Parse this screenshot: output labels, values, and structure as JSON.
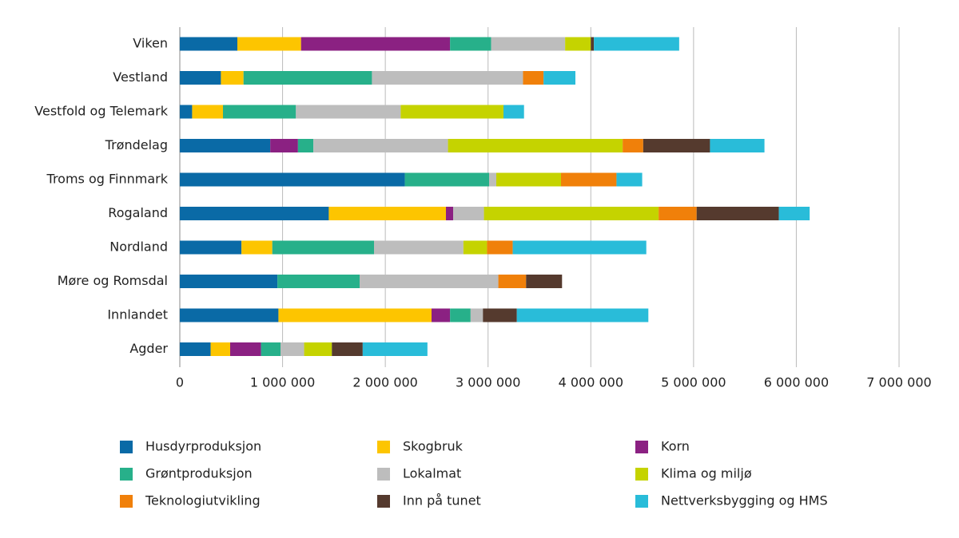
{
  "chart_data": {
    "type": "stacked-bar-horizontal",
    "categories": [
      "Viken",
      "Vestland",
      "Vestfold og Telemark",
      "Trøndelag",
      "Troms og Finnmark",
      "Rogaland",
      "Nordland",
      "Møre og Romsdal",
      "Innlandet",
      "Agder"
    ],
    "series": [
      {
        "name": "Husdyrproduksjon",
        "color": "#0a6aa6",
        "values": [
          560000,
          400000,
          120000,
          880000,
          2190000,
          1450000,
          600000,
          950000,
          960000,
          300000
        ]
      },
      {
        "name": "Skogbruk",
        "color": "#fdc500",
        "values": [
          620000,
          220000,
          300000,
          0,
          0,
          1140000,
          300000,
          0,
          1490000,
          190000
        ]
      },
      {
        "name": "Korn",
        "color": "#8b2182",
        "values": [
          1450000,
          0,
          0,
          270000,
          0,
          70000,
          0,
          0,
          180000,
          300000
        ]
      },
      {
        "name": "Grøntproduksjon",
        "color": "#27b08a",
        "values": [
          400000,
          1250000,
          710000,
          150000,
          820000,
          0,
          990000,
          800000,
          200000,
          190000
        ]
      },
      {
        "name": "Lokalmat",
        "color": "#bdbdbd",
        "values": [
          720000,
          1470000,
          1020000,
          1310000,
          70000,
          300000,
          870000,
          1350000,
          120000,
          230000
        ]
      },
      {
        "name": "Klima og miljø",
        "color": "#c5d300",
        "values": [
          250000,
          0,
          1000000,
          1700000,
          630000,
          1700000,
          230000,
          0,
          0,
          270000
        ]
      },
      {
        "name": "Teknologiutvikling",
        "color": "#f0800a",
        "values": [
          0,
          200000,
          0,
          200000,
          540000,
          370000,
          250000,
          270000,
          0,
          0
        ]
      },
      {
        "name": "Inn på tunet",
        "color": "#553a2e",
        "values": [
          30000,
          0,
          0,
          650000,
          0,
          800000,
          0,
          350000,
          330000,
          300000
        ]
      },
      {
        "name": "Nettverksbygging og HMS",
        "color": "#29bcd9",
        "values": [
          830000,
          310000,
          200000,
          530000,
          250000,
          300000,
          1300000,
          0,
          1280000,
          630000
        ]
      }
    ],
    "xlim": [
      0,
      7000000
    ],
    "xticks": [
      0,
      {
        "value": 1000000,
        "label": "1 000 000"
      },
      {
        "value": 2000000,
        "label": "2 000 000"
      },
      {
        "value": 3000000,
        "label": "3 000 000"
      },
      {
        "value": 4000000,
        "label": "4 000 000"
      },
      {
        "value": 5000000,
        "label": "5 000 000"
      },
      {
        "value": 6000000,
        "label": "6 000 000"
      },
      {
        "value": 7000000,
        "label": "7 000 000"
      }
    ],
    "grid": true
  }
}
